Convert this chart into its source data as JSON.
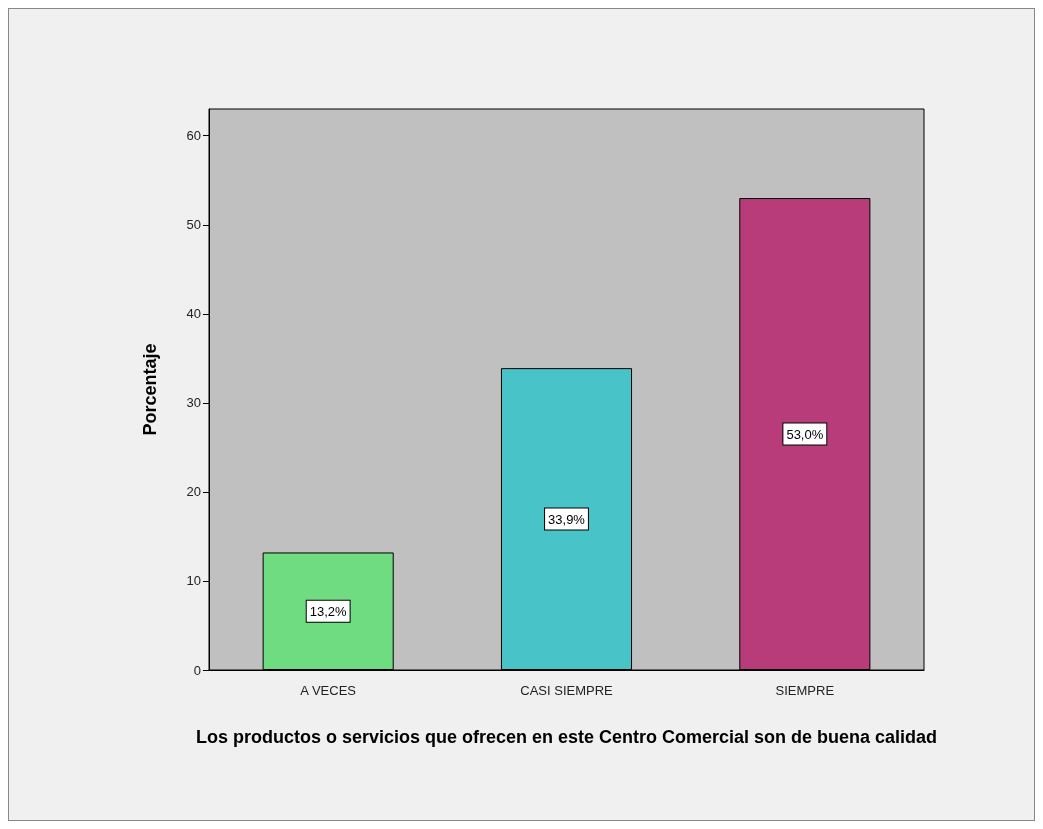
{
  "chart_data": {
    "type": "bar",
    "xlabel": "Los productos o servicios que ofrecen en este Centro Comercial son de buena calidad",
    "ylabel": "Porcentaje",
    "categories": [
      "A VECES",
      "CASI SIEMPRE",
      "SIEMPRE"
    ],
    "values": [
      13.2,
      33.9,
      53.0
    ],
    "colors": [
      "#6fdc82",
      "#48c3c8",
      "#b83c7a"
    ],
    "value_labels": [
      "13,2%",
      "33,9%",
      "53,0%"
    ],
    "ylim": [
      0,
      63
    ],
    "yticks": [
      0,
      10,
      20,
      30,
      40,
      50,
      60
    ],
    "grid": false
  }
}
